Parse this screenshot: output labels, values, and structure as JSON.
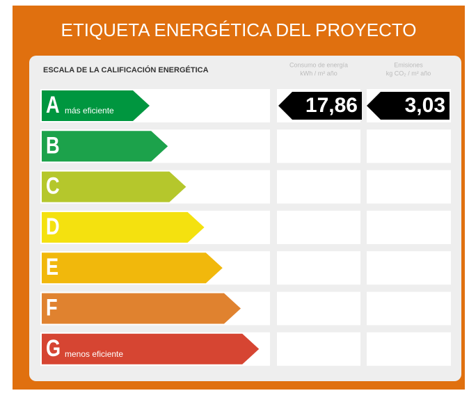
{
  "title": "ETIQUETA ENERGÉTICA DEL PROYECTO",
  "scale_label": "ESCALA DE LA CALIFICACIÓN ENERGÉTICA",
  "columns": [
    [
      "Consumo de energía",
      "kWh / m² año"
    ],
    [
      "Emisiones",
      "kg CO₂ / m² año"
    ]
  ],
  "ratings": [
    {
      "letter": "A",
      "label": "más eficiente",
      "color": "#00963f"
    },
    {
      "letter": "B",
      "color": "#1ca24b"
    },
    {
      "letter": "C",
      "color": "#b5c72c"
    },
    {
      "letter": "D",
      "color": "#f4e10f"
    },
    {
      "letter": "E",
      "color": "#f1b80c"
    },
    {
      "letter": "F",
      "color": "#e0822f"
    },
    {
      "letter": "G",
      "label": "menos eficiente",
      "color": "#d64532"
    }
  ],
  "result": {
    "rating": "A",
    "values": [
      "17,86",
      "3,03"
    ]
  }
}
